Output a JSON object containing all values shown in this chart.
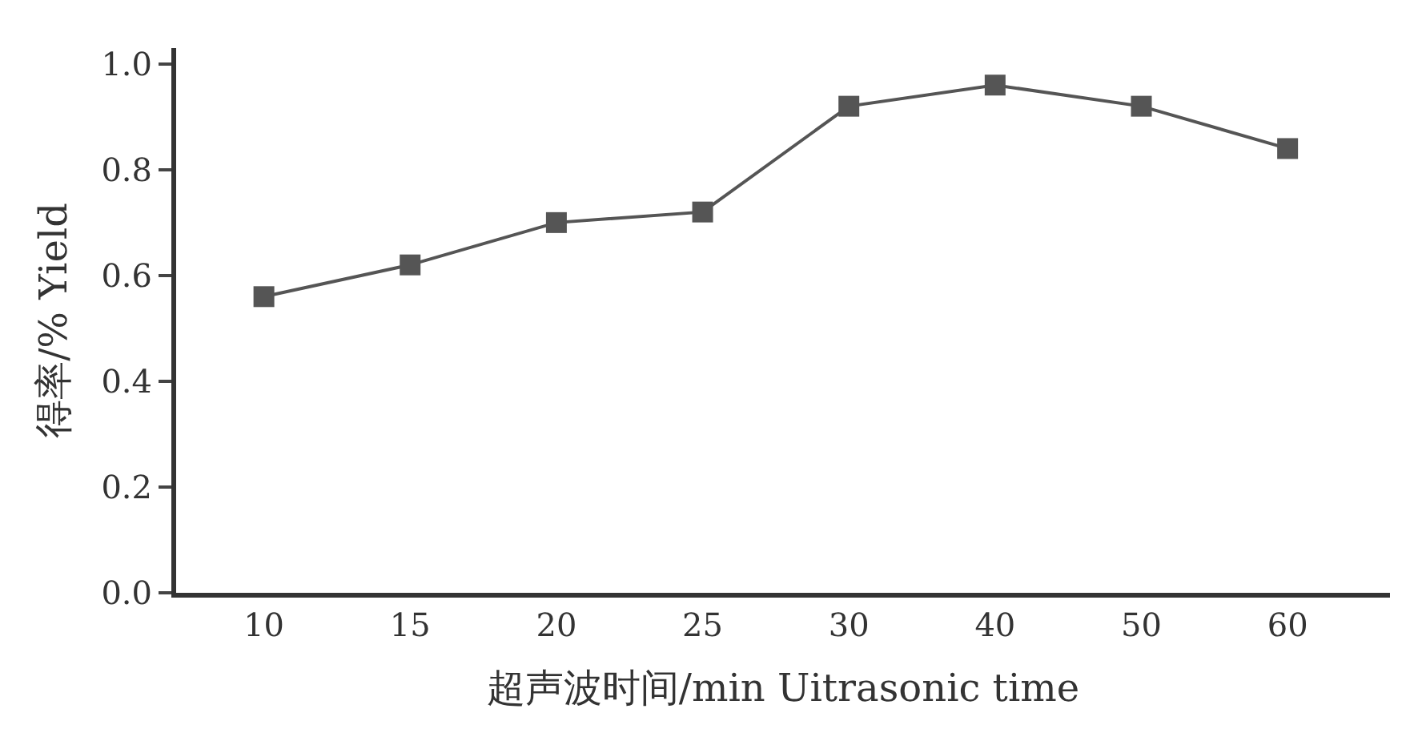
{
  "chart_data": {
    "type": "line",
    "xlabel": "超声波时间/min Uitrasonic time",
    "ylabel": "得率/% Yield",
    "categories": [
      "10",
      "15",
      "20",
      "25",
      "30",
      "40",
      "50",
      "60"
    ],
    "series": [
      {
        "color": "#555555",
        "values": [
          0.56,
          0.62,
          0.7,
          0.72,
          0.92,
          0.96,
          0.92,
          0.84
        ]
      }
    ],
    "ylim": [
      0,
      1.03
    ],
    "yticks": [
      {
        "value": 0,
        "label": "0.0"
      },
      {
        "value": 0.2,
        "label": "0.2"
      },
      {
        "value": 0.4,
        "label": "0.4"
      },
      {
        "value": 0.6,
        "label": "0.6"
      },
      {
        "value": 0.8,
        "label": "0.8"
      },
      {
        "value": 1.0,
        "label": "1.0"
      }
    ],
    "marker": "square",
    "line_style": "solid"
  }
}
